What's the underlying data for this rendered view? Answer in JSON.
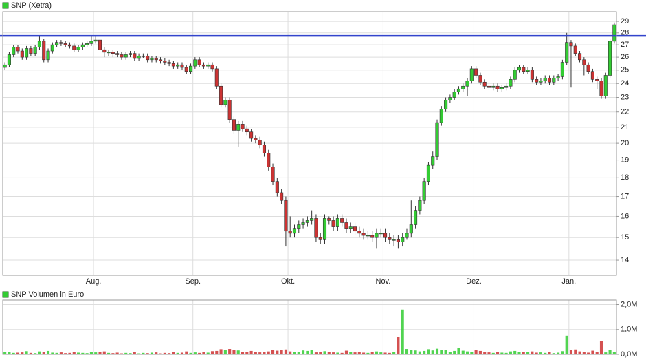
{
  "chart_data": [
    {
      "type": "candlestick",
      "title": "SNP (Xetra)",
      "log_scale": true,
      "grid": true,
      "up_color": "#33cc33",
      "down_color": "#cc3333",
      "reference_line": {
        "value": 27.75,
        "color": "#3344cc"
      },
      "ylim": [
        13.37,
        29.87
      ],
      "yticks": [
        14,
        15,
        16,
        17,
        18,
        19,
        20,
        21,
        22,
        23,
        24,
        25,
        26,
        27,
        28,
        29
      ],
      "categories": [
        null,
        null,
        null,
        null,
        null,
        null,
        null,
        null,
        null,
        null,
        null,
        null,
        null,
        null,
        null,
        null,
        null,
        null,
        null,
        null,
        null,
        "Aug.",
        null,
        null,
        null,
        null,
        null,
        null,
        null,
        null,
        null,
        null,
        null,
        null,
        null,
        null,
        null,
        null,
        null,
        null,
        null,
        null,
        null,
        null,
        "Sep.",
        null,
        null,
        null,
        null,
        null,
        null,
        null,
        null,
        null,
        null,
        null,
        null,
        null,
        null,
        null,
        null,
        null,
        null,
        null,
        null,
        null,
        "Okt.",
        null,
        null,
        null,
        null,
        null,
        null,
        null,
        null,
        null,
        null,
        null,
        null,
        null,
        null,
        null,
        null,
        null,
        null,
        null,
        null,
        null,
        "Nov.",
        null,
        null,
        null,
        null,
        null,
        null,
        null,
        null,
        null,
        null,
        null,
        null,
        null,
        null,
        null,
        null,
        null,
        null,
        null,
        null,
        "Dez.",
        null,
        null,
        null,
        null,
        null,
        null,
        null,
        null,
        null,
        null,
        null,
        null,
        null,
        null,
        null,
        null,
        null,
        null,
        null,
        null,
        null,
        "Jan.",
        null,
        null,
        null,
        null,
        null,
        null,
        null,
        null,
        null,
        null
      ],
      "open": [
        25.2,
        25.4,
        26.2,
        26.8,
        26.5,
        26.0,
        26.7,
        26.3,
        26.8,
        27.3,
        25.8,
        26.5,
        27.0,
        27.2,
        27.1,
        27.0,
        26.9,
        26.6,
        26.8,
        27.0,
        27.1,
        27.3,
        27.4,
        26.6,
        26.4,
        26.4,
        26.3,
        26.2,
        26.0,
        26.2,
        26.3,
        25.9,
        26.1,
        26.1,
        25.8,
        25.9,
        25.8,
        25.7,
        25.6,
        25.5,
        25.3,
        25.4,
        25.2,
        24.9,
        25.3,
        25.8,
        25.4,
        25.3,
        25.4,
        25.1,
        23.8,
        22.5,
        22.8,
        21.5,
        20.8,
        21.2,
        20.9,
        20.7,
        20.3,
        20.2,
        19.9,
        19.4,
        18.6,
        17.8,
        17.2,
        16.8,
        15.3,
        15.2,
        15.4,
        15.6,
        15.7,
        15.8,
        15.9,
        15.0,
        14.9,
        15.9,
        15.8,
        15.5,
        15.9,
        15.7,
        15.4,
        15.5,
        15.3,
        15.2,
        15.1,
        15.1,
        15.0,
        15.2,
        15.2,
        15.0,
        14.9,
        14.9,
        14.8,
        15.0,
        15.2,
        15.6,
        16.3,
        16.8,
        17.8,
        18.7,
        19.2,
        21.3,
        22.2,
        22.8,
        23.0,
        23.4,
        23.6,
        23.8,
        24.2,
        25.1,
        24.6,
        24.1,
        23.8,
        23.7,
        23.8,
        23.6,
        23.7,
        23.8,
        24.3,
        25.0,
        25.2,
        24.9,
        25.0,
        24.3,
        24.1,
        24.2,
        24.4,
        24.1,
        24.4,
        24.5,
        25.6,
        27.2,
        26.9,
        26.3,
        25.8,
        25.4,
        24.9,
        24.3,
        24.2,
        23.1,
        24.6,
        27.3
      ],
      "high": [
        25.6,
        26.4,
        27.0,
        27.0,
        26.7,
        26.9,
        26.9,
        27.0,
        27.7,
        27.5,
        26.7,
        27.2,
        27.4,
        27.4,
        27.3,
        27.2,
        27.1,
        27.0,
        27.2,
        27.3,
        27.7,
        27.7,
        27.6,
        26.8,
        26.6,
        26.6,
        26.5,
        26.4,
        26.4,
        26.5,
        26.5,
        26.3,
        26.3,
        26.3,
        26.1,
        26.1,
        26.0,
        25.9,
        25.8,
        25.7,
        25.6,
        25.6,
        25.4,
        25.5,
        26.0,
        26.0,
        25.6,
        25.6,
        25.6,
        25.3,
        24.0,
        23.0,
        23.0,
        21.7,
        21.4,
        21.4,
        21.1,
        20.9,
        20.5,
        20.4,
        20.1,
        19.6,
        18.8,
        18.0,
        17.4,
        17.0,
        16.0,
        15.6,
        15.8,
        15.9,
        16.0,
        16.3,
        16.1,
        15.2,
        16.1,
        16.0,
        16.0,
        16.1,
        16.1,
        15.9,
        15.7,
        15.7,
        15.5,
        15.4,
        15.3,
        15.3,
        15.4,
        15.4,
        15.4,
        15.2,
        15.1,
        15.1,
        15.2,
        15.4,
        16.8,
        16.5,
        17.0,
        18.0,
        18.9,
        19.5,
        21.5,
        22.4,
        23.0,
        23.2,
        23.6,
        23.8,
        24.0,
        24.4,
        25.3,
        25.3,
        24.8,
        24.3,
        24.0,
        24.0,
        24.0,
        23.9,
        24.0,
        24.5,
        25.2,
        25.4,
        25.4,
        25.2,
        25.2,
        24.5,
        24.4,
        24.6,
        24.6,
        24.6,
        24.7,
        25.8,
        28.0,
        27.4,
        27.1,
        26.5,
        26.0,
        25.6,
        25.1,
        24.5,
        24.4,
        24.8,
        27.5,
        28.9
      ],
      "low": [
        25.0,
        25.2,
        26.0,
        26.3,
        25.8,
        25.8,
        26.1,
        26.1,
        26.6,
        25.6,
        25.6,
        26.3,
        26.8,
        26.9,
        26.8,
        26.7,
        26.4,
        26.4,
        26.6,
        26.8,
        26.9,
        27.1,
        26.4,
        26.0,
        26.1,
        26.0,
        26.0,
        25.8,
        25.8,
        26.0,
        25.7,
        25.7,
        25.9,
        25.6,
        25.6,
        25.6,
        25.5,
        25.4,
        25.3,
        25.1,
        25.1,
        25.0,
        24.7,
        24.7,
        25.1,
        25.2,
        25.1,
        25.1,
        24.9,
        23.6,
        22.3,
        22.3,
        21.3,
        20.6,
        19.8,
        20.7,
        20.5,
        20.1,
        20.0,
        19.7,
        19.2,
        18.4,
        17.6,
        17.0,
        16.6,
        14.6,
        15.0,
        15.0,
        15.2,
        15.4,
        15.5,
        15.6,
        14.8,
        14.7,
        14.7,
        15.6,
        15.3,
        15.3,
        15.5,
        15.2,
        15.2,
        15.1,
        15.0,
        14.9,
        14.9,
        14.8,
        14.5,
        15.0,
        14.8,
        14.7,
        14.6,
        14.5,
        14.6,
        14.9,
        15.0,
        15.4,
        16.1,
        16.6,
        17.6,
        18.5,
        19.0,
        21.1,
        22.0,
        22.6,
        22.8,
        23.2,
        23.4,
        23.1,
        24.0,
        24.4,
        23.9,
        23.6,
        23.5,
        23.5,
        23.4,
        23.4,
        23.5,
        23.6,
        24.1,
        24.8,
        24.7,
        24.7,
        24.1,
        23.9,
        23.9,
        24.0,
        23.9,
        23.9,
        24.2,
        24.3,
        25.4,
        23.7,
        26.1,
        25.6,
        24.6,
        24.7,
        24.1,
        23.6,
        22.9,
        22.9,
        24.4,
        27.1
      ],
      "close": [
        25.4,
        26.2,
        26.8,
        26.5,
        26.0,
        26.7,
        26.3,
        26.8,
        27.3,
        25.8,
        26.5,
        27.0,
        27.2,
        27.1,
        27.0,
        26.9,
        26.6,
        26.8,
        27.0,
        27.1,
        27.3,
        27.4,
        26.6,
        26.4,
        26.4,
        26.3,
        26.2,
        26.0,
        26.2,
        26.3,
        25.9,
        26.1,
        26.1,
        25.8,
        25.9,
        25.8,
        25.7,
        25.6,
        25.5,
        25.3,
        25.4,
        25.2,
        24.9,
        25.3,
        25.8,
        25.4,
        25.3,
        25.4,
        25.1,
        23.8,
        22.5,
        22.8,
        21.5,
        20.8,
        21.2,
        20.9,
        20.7,
        20.3,
        20.2,
        19.9,
        19.4,
        18.6,
        17.8,
        17.2,
        16.8,
        15.3,
        15.2,
        15.4,
        15.6,
        15.7,
        15.8,
        15.9,
        15.0,
        14.9,
        15.9,
        15.8,
        15.5,
        15.9,
        15.7,
        15.4,
        15.5,
        15.3,
        15.2,
        15.1,
        15.1,
        15.0,
        15.2,
        15.2,
        15.0,
        14.9,
        14.9,
        14.8,
        15.0,
        15.2,
        15.6,
        16.3,
        16.8,
        17.8,
        18.7,
        19.2,
        21.3,
        22.2,
        22.8,
        23.0,
        23.4,
        23.6,
        23.8,
        24.2,
        25.1,
        24.6,
        24.1,
        23.8,
        23.7,
        23.8,
        23.6,
        23.7,
        23.8,
        24.3,
        25.0,
        25.2,
        24.9,
        25.0,
        24.3,
        24.1,
        24.2,
        24.4,
        24.1,
        24.4,
        24.5,
        25.6,
        27.2,
        26.9,
        26.3,
        25.8,
        25.4,
        24.9,
        24.3,
        24.2,
        23.1,
        24.6,
        27.3,
        28.7
      ]
    },
    {
      "type": "volume",
      "title": "SNP Volumen in Euro",
      "grid": true,
      "ylim": [
        0,
        2180000
      ],
      "yticks": [
        {
          "value": 0,
          "label": "0,0M"
        },
        {
          "value": 1000000,
          "label": "1,0M"
        },
        {
          "value": 2000000,
          "label": "2,0M"
        }
      ],
      "values": [
        90000,
        110000,
        60000,
        70000,
        80000,
        130000,
        60000,
        50000,
        120000,
        100000,
        140000,
        70000,
        60000,
        80000,
        50000,
        60000,
        90000,
        70000,
        60000,
        50000,
        90000,
        80000,
        100000,
        120000,
        60000,
        50000,
        70000,
        40000,
        60000,
        50000,
        90000,
        40000,
        60000,
        50000,
        70000,
        80000,
        40000,
        60000,
        50000,
        90000,
        60000,
        70000,
        120000,
        60000,
        80000,
        60000,
        90000,
        70000,
        130000,
        140000,
        210000,
        180000,
        220000,
        190000,
        160000,
        110000,
        90000,
        140000,
        100000,
        80000,
        110000,
        120000,
        170000,
        150000,
        190000,
        200000,
        120000,
        100000,
        90000,
        160000,
        140000,
        180000,
        80000,
        110000,
        130000,
        90000,
        80000,
        70000,
        60000,
        150000,
        90000,
        80000,
        100000,
        70000,
        60000,
        90000,
        120000,
        80000,
        70000,
        60000,
        90000,
        700000,
        1800000,
        220000,
        180000,
        160000,
        120000,
        140000,
        210000,
        160000,
        230000,
        170000,
        190000,
        110000,
        140000,
        260000,
        150000,
        120000,
        100000,
        180000,
        140000,
        110000,
        80000,
        60000,
        90000,
        70000,
        60000,
        120000,
        140000,
        110000,
        90000,
        100000,
        120000,
        70000,
        80000,
        60000,
        90000,
        50000,
        70000,
        130000,
        750000,
        180000,
        200000,
        120000,
        90000,
        70000,
        150000,
        100000,
        550000,
        80000,
        180000,
        100000
      ]
    }
  ]
}
